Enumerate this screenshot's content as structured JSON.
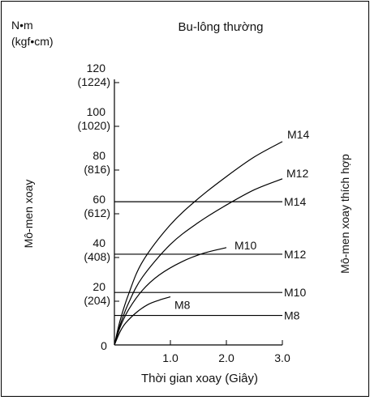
{
  "header": {
    "unit_line1": "N•m",
    "unit_line2": "(kgf•cm)",
    "title": "Bu-lông thường"
  },
  "chart_data": {
    "type": "line",
    "title": "Bu-lông thường",
    "xlabel": "Thời gian xoay (Giây)",
    "ylabel": "Mô-men xoay",
    "ylabel_right": "Mô-men xoay thích hợp",
    "xlim": [
      0,
      3.0
    ],
    "ylim": [
      0,
      120
    ],
    "x_ticks": [
      {
        "value": 0,
        "label": "0"
      },
      {
        "value": 1.0,
        "label": "1.0"
      },
      {
        "value": 2.0,
        "label": "2.0"
      },
      {
        "value": 3.0,
        "label": "3.0"
      }
    ],
    "y_ticks": [
      {
        "value": 20,
        "label": "20",
        "sub": "(204)"
      },
      {
        "value": 40,
        "label": "40",
        "sub": "(408)"
      },
      {
        "value": 60,
        "label": "60",
        "sub": "(612)"
      },
      {
        "value": 80,
        "label": "80",
        "sub": "(816)"
      },
      {
        "value": 100,
        "label": "100",
        "sub": "(1020)"
      },
      {
        "value": 120,
        "label": "120",
        "sub": "(1224)"
      }
    ],
    "series": [
      {
        "name": "M8",
        "x": [
          0,
          0.1,
          0.2,
          0.4,
          0.6,
          0.8,
          1.0
        ],
        "y": [
          0,
          6,
          10,
          15,
          18.5,
          20.5,
          22
        ]
      },
      {
        "name": "M10",
        "x": [
          0,
          0.1,
          0.25,
          0.5,
          0.8,
          1.2,
          1.6,
          2.0
        ],
        "y": [
          0,
          8,
          16,
          25,
          32,
          38,
          42,
          44.5
        ]
      },
      {
        "name": "M12",
        "x": [
          0,
          0.1,
          0.25,
          0.5,
          1.0,
          1.5,
          2.0,
          2.5,
          3.0
        ],
        "y": [
          0,
          9,
          19,
          31,
          46,
          56,
          64,
          71,
          76
        ]
      },
      {
        "name": "M14",
        "x": [
          0,
          0.1,
          0.25,
          0.5,
          1.0,
          1.5,
          2.0,
          2.5,
          3.0
        ],
        "y": [
          0,
          11,
          23,
          38,
          55,
          67,
          77,
          86,
          93
        ]
      }
    ],
    "reference_lines": [
      {
        "name": "M14",
        "y": 65.5
      },
      {
        "name": "M12",
        "y": 41.5
      },
      {
        "name": "M10",
        "y": 24
      },
      {
        "name": "M8",
        "y": 13.5
      }
    ]
  }
}
